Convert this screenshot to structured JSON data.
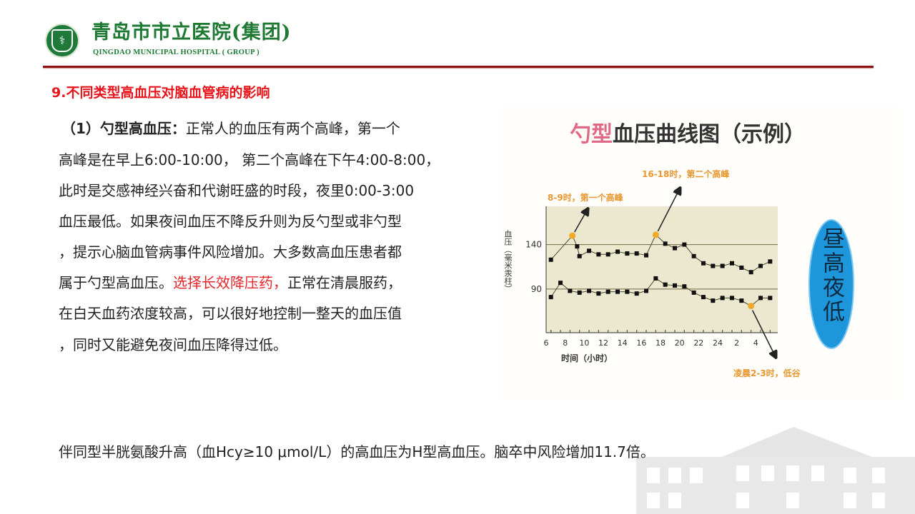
{
  "header": {
    "hospital_name_cn": "青岛市市立医院(集团)",
    "hospital_name_en": "QINGDAO MUNICIPAL HOSPITAL ( GROUP )"
  },
  "section_title": "9.不同类型高血压对脑血管病的影响",
  "paragraph": {
    "lead": "（1）勺型高血压：",
    "lines": [
      "正常人的血压有两个高峰，第一个",
      "高峰是在早上6:00-10:00，  第二个高峰在下午4:00-8:00，",
      "此时是交感神经兴奋和代谢旺盛的时段，夜里0:00-3:00",
      "血压最低。如果夜间血压不降反升则为反勺型或非勺型",
      "，提示心脑血管病事件风险增加。大多数高血压患者都",
      "属于勺型高血压。",
      "在白天血药浓度较高，可以很好地控制一整天的血压值",
      "，同时又能避免夜间血压降得过低。"
    ],
    "highlight": "选择长效降压药，",
    "after_highlight": "正常在清晨服药，"
  },
  "bottom_text": "伴同型半胱氨酸升高（血Hcy≥10 μmol/L）的高血压为H型高血压。脑卒中风险增加11.7倍。",
  "chart_data": {
    "type": "line",
    "title_highlight": "勺型",
    "title_rest": "血压曲线图（示例）",
    "ylabel": "血压（毫米汞柱）",
    "xlabel": "时间（小时）",
    "ylim": [
      41,
      183
    ],
    "yticks": [
      140,
      90
    ],
    "xticks": [
      "8",
      "10",
      "12",
      "14",
      "16",
      "18",
      "20",
      "22",
      "24",
      "2",
      "4",
      "6"
    ],
    "xtick_values": [
      8,
      10,
      12,
      14,
      16,
      18,
      20,
      22,
      24,
      2,
      4,
      6
    ],
    "reference_lines": [
      140,
      90
    ],
    "series": [
      {
        "points": [
          [
            6.5,
            123
          ],
          [
            8.75,
            150
          ],
          [
            9.25,
            138
          ],
          [
            9.5,
            127
          ],
          [
            10.5,
            133
          ],
          [
            11.5,
            129
          ],
          [
            12.5,
            129
          ],
          [
            13.5,
            132
          ],
          [
            14.5,
            130
          ],
          [
            15.5,
            130
          ],
          [
            16.5,
            128
          ],
          [
            17.5,
            151
          ],
          [
            18.5,
            141
          ],
          [
            19.5,
            136
          ],
          [
            20.5,
            140
          ],
          [
            21.5,
            127
          ],
          [
            22.5,
            119
          ],
          [
            23.5,
            116
          ],
          [
            0.5,
            116
          ],
          [
            1.5,
            119
          ],
          [
            2.5,
            114
          ],
          [
            3.5,
            109
          ],
          [
            4.5,
            116
          ],
          [
            5.5,
            121
          ]
        ],
        "highlight_x": [
          8.75,
          17.5
        ]
      },
      {
        "points": [
          [
            6.5,
            81
          ],
          [
            7.5,
            97
          ],
          [
            8.5,
            88
          ],
          [
            9.5,
            86
          ],
          [
            10.5,
            88
          ],
          [
            11.5,
            85
          ],
          [
            12.5,
            87
          ],
          [
            13.5,
            87
          ],
          [
            14.5,
            87
          ],
          [
            15.5,
            85
          ],
          [
            16.5,
            88
          ],
          [
            17.5,
            102
          ],
          [
            18.5,
            95
          ],
          [
            19.5,
            94
          ],
          [
            20.5,
            93
          ],
          [
            21.5,
            86
          ],
          [
            22.5,
            81
          ],
          [
            23.5,
            77
          ],
          [
            0.5,
            80
          ],
          [
            1.5,
            80
          ],
          [
            2.5,
            77
          ],
          [
            3.5,
            71
          ],
          [
            4.5,
            80
          ],
          [
            5.5,
            80
          ]
        ],
        "highlight_x": [
          3.5
        ]
      }
    ],
    "annotations": [
      "8-9时，第一个高峰",
      "16-18时，第二个高峰",
      "凌晨2-3时，低谷"
    ],
    "side_label": "昼高夜低",
    "colors": {
      "plot_bg": "#ebe8cf",
      "highlight": "#f0a928",
      "annotation": "#e8962e",
      "title_highlight": "#e06a86",
      "badge": "#1e96dc"
    }
  }
}
